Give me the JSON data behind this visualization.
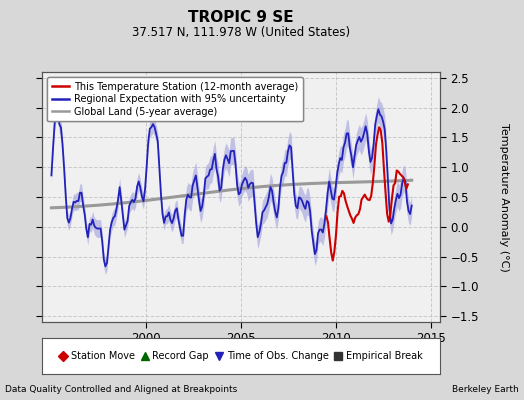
{
  "title": "TROPIC 9 SE",
  "subtitle": "37.517 N, 111.978 W (United States)",
  "ylabel": "Temperature Anomaly (°C)",
  "xlabel_left": "Data Quality Controlled and Aligned at Breakpoints",
  "xlabel_right": "Berkeley Earth",
  "xlim": [
    1994.5,
    2015.5
  ],
  "ylim": [
    -1.6,
    2.6
  ],
  "yticks": [
    -1.5,
    -1.0,
    -0.5,
    0.0,
    0.5,
    1.0,
    1.5,
    2.0,
    2.5
  ],
  "xticks": [
    2000,
    2005,
    2010,
    2015
  ],
  "bg_color": "#d8d8d8",
  "plot_bg_color": "#f0f0f0",
  "grid_color": "#c0c0c0",
  "regional_color": "#2222bb",
  "regional_fill_color": "#9999dd",
  "station_color": "#cc0000",
  "global_color": "#999999",
  "legend_items_line": [
    {
      "label": "This Temperature Station (12-month average)",
      "color": "#cc0000",
      "lw": 2
    },
    {
      "label": "Regional Expectation with 95% uncertainty",
      "color": "#2222bb",
      "lw": 2
    },
    {
      "label": "Global Land (5-year average)",
      "color": "#999999",
      "lw": 2
    }
  ],
  "legend_items_marker": [
    {
      "label": "Station Move",
      "color": "#cc0000",
      "marker": "D"
    },
    {
      "label": "Record Gap",
      "color": "#006600",
      "marker": "^"
    },
    {
      "label": "Time of Obs. Change",
      "color": "#2222bb",
      "marker": "v"
    },
    {
      "label": "Empirical Break",
      "color": "#333333",
      "marker": "s"
    }
  ]
}
